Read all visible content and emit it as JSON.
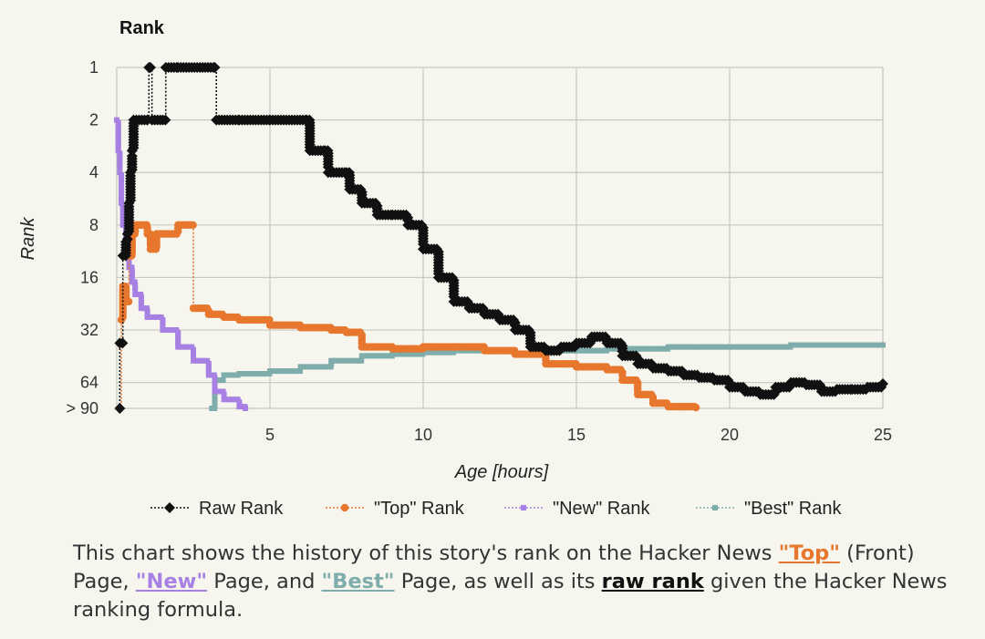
{
  "chart_data": {
    "type": "line",
    "title": "Rank",
    "xlabel": "Age [hours]",
    "ylabel": "Rank",
    "xlim": [
      0,
      25
    ],
    "x_ticks": [
      5,
      10,
      15,
      20,
      25
    ],
    "y_scale": "log2",
    "y_reversed": true,
    "y_ticks": [
      1,
      2,
      4,
      8,
      16,
      32,
      64,
      90
    ],
    "y_tick_labels": [
      "1",
      "2",
      "4",
      "8",
      "16",
      "32",
      "64",
      "> 90"
    ],
    "grid": true,
    "legend_position": "bottom",
    "series": [
      {
        "name": "Raw Rank",
        "color": "#111111",
        "marker": "diamond",
        "points": [
          [
            0.1,
            90
          ],
          [
            0.1,
            38
          ],
          [
            0.2,
            12
          ],
          [
            0.3,
            10
          ],
          [
            0.35,
            9
          ],
          [
            0.4,
            6
          ],
          [
            0.45,
            4
          ],
          [
            0.5,
            3
          ],
          [
            0.55,
            2
          ],
          [
            1.0,
            2
          ],
          [
            1.05,
            1
          ],
          [
            1.1,
            1
          ],
          [
            1.15,
            2
          ],
          [
            1.5,
            2
          ],
          [
            1.6,
            1
          ],
          [
            2.0,
            1
          ],
          [
            2.8,
            1
          ],
          [
            3.2,
            1
          ],
          [
            3.25,
            2
          ],
          [
            4.0,
            2
          ],
          [
            5.0,
            2
          ],
          [
            6.2,
            2
          ],
          [
            6.3,
            3
          ],
          [
            6.8,
            3
          ],
          [
            6.9,
            4
          ],
          [
            7.5,
            4
          ],
          [
            7.6,
            5
          ],
          [
            8.0,
            6
          ],
          [
            8.5,
            7
          ],
          [
            9.0,
            7
          ],
          [
            9.5,
            8
          ],
          [
            10.0,
            11
          ],
          [
            10.5,
            16
          ],
          [
            11.0,
            22
          ],
          [
            11.5,
            24
          ],
          [
            12.0,
            26
          ],
          [
            12.5,
            28
          ],
          [
            13.0,
            32
          ],
          [
            13.5,
            40
          ],
          [
            14.0,
            42
          ],
          [
            14.5,
            40
          ],
          [
            15.0,
            38
          ],
          [
            15.5,
            35
          ],
          [
            16.0,
            38
          ],
          [
            16.5,
            45
          ],
          [
            17.0,
            50
          ],
          [
            17.5,
            53
          ],
          [
            18.0,
            55
          ],
          [
            18.5,
            58
          ],
          [
            19.0,
            60
          ],
          [
            19.5,
            62
          ],
          [
            20.0,
            68
          ],
          [
            20.5,
            72
          ],
          [
            21.0,
            75
          ],
          [
            21.5,
            68
          ],
          [
            22.0,
            64
          ],
          [
            22.5,
            66
          ],
          [
            23.0,
            72
          ],
          [
            23.5,
            70
          ],
          [
            24.0,
            70
          ],
          [
            24.5,
            68
          ],
          [
            25.0,
            65
          ]
        ]
      },
      {
        "name": "\"Top\" Rank",
        "color": "#e8772e",
        "marker": "circle",
        "points": [
          [
            0.1,
            90
          ],
          [
            0.15,
            28
          ],
          [
            0.2,
            18
          ],
          [
            0.3,
            22
          ],
          [
            0.4,
            12
          ],
          [
            0.5,
            9
          ],
          [
            0.6,
            8
          ],
          [
            0.8,
            8
          ],
          [
            1.0,
            9
          ],
          [
            1.1,
            11
          ],
          [
            1.3,
            9
          ],
          [
            1.6,
            9
          ],
          [
            2.0,
            8
          ],
          [
            2.2,
            8
          ],
          [
            2.4,
            8
          ],
          [
            2.5,
            24
          ],
          [
            3.0,
            26
          ],
          [
            3.5,
            27
          ],
          [
            4.0,
            28
          ],
          [
            5.0,
            30
          ],
          [
            6.0,
            31
          ],
          [
            7.0,
            32
          ],
          [
            7.5,
            33
          ],
          [
            8.0,
            40
          ],
          [
            9.0,
            41
          ],
          [
            10.0,
            40
          ],
          [
            11.0,
            40
          ],
          [
            12.0,
            42
          ],
          [
            13.0,
            44
          ],
          [
            14.0,
            50
          ],
          [
            15.0,
            52
          ],
          [
            16.0,
            54
          ],
          [
            16.5,
            62
          ],
          [
            17.0,
            75
          ],
          [
            17.5,
            84
          ],
          [
            18.0,
            88
          ],
          [
            18.5,
            88
          ],
          [
            18.9,
            89
          ]
        ]
      },
      {
        "name": "\"New\" Rank",
        "color": "#a780e4",
        "marker": "square",
        "points": [
          [
            0.0,
            2
          ],
          [
            0.05,
            3
          ],
          [
            0.1,
            4
          ],
          [
            0.15,
            6
          ],
          [
            0.2,
            8
          ],
          [
            0.3,
            11
          ],
          [
            0.4,
            14
          ],
          [
            0.5,
            17
          ],
          [
            0.6,
            20
          ],
          [
            0.8,
            24
          ],
          [
            1.0,
            27
          ],
          [
            1.5,
            32
          ],
          [
            2.0,
            40
          ],
          [
            2.5,
            48
          ],
          [
            3.0,
            58
          ],
          [
            3.2,
            72
          ],
          [
            3.5,
            80
          ],
          [
            4.0,
            88
          ],
          [
            4.2,
            90
          ]
        ]
      },
      {
        "name": "\"Best\" Rank",
        "color": "#7fadab",
        "marker": "square",
        "points": [
          [
            3.1,
            90
          ],
          [
            3.2,
            62
          ],
          [
            3.5,
            58
          ],
          [
            4.0,
            57
          ],
          [
            5.0,
            55
          ],
          [
            6.0,
            52
          ],
          [
            7.0,
            48
          ],
          [
            8.0,
            45
          ],
          [
            9.0,
            44
          ],
          [
            10.0,
            43
          ],
          [
            11.0,
            42
          ],
          [
            12.0,
            42
          ],
          [
            13.0,
            44
          ],
          [
            14.0,
            42
          ],
          [
            15.0,
            42
          ],
          [
            16.0,
            41
          ],
          [
            17.0,
            41
          ],
          [
            18.0,
            40
          ],
          [
            19.0,
            40
          ],
          [
            20.0,
            40
          ],
          [
            21.0,
            40
          ],
          [
            22.0,
            39
          ],
          [
            23.0,
            39
          ],
          [
            24.0,
            39
          ],
          [
            25.0,
            39
          ]
        ]
      }
    ]
  },
  "caption": {
    "part1": "This chart shows the history of this story's rank on the Hacker News ",
    "top_link": "\"Top\"",
    "part2": " (Front) Page, ",
    "new_link": "\"New\"",
    "part3": " Page, and ",
    "best_link": "\"Best\"",
    "part4": " Page, as well as its ",
    "raw_link": "raw rank",
    "part5": " given the Hacker News ranking formula."
  }
}
